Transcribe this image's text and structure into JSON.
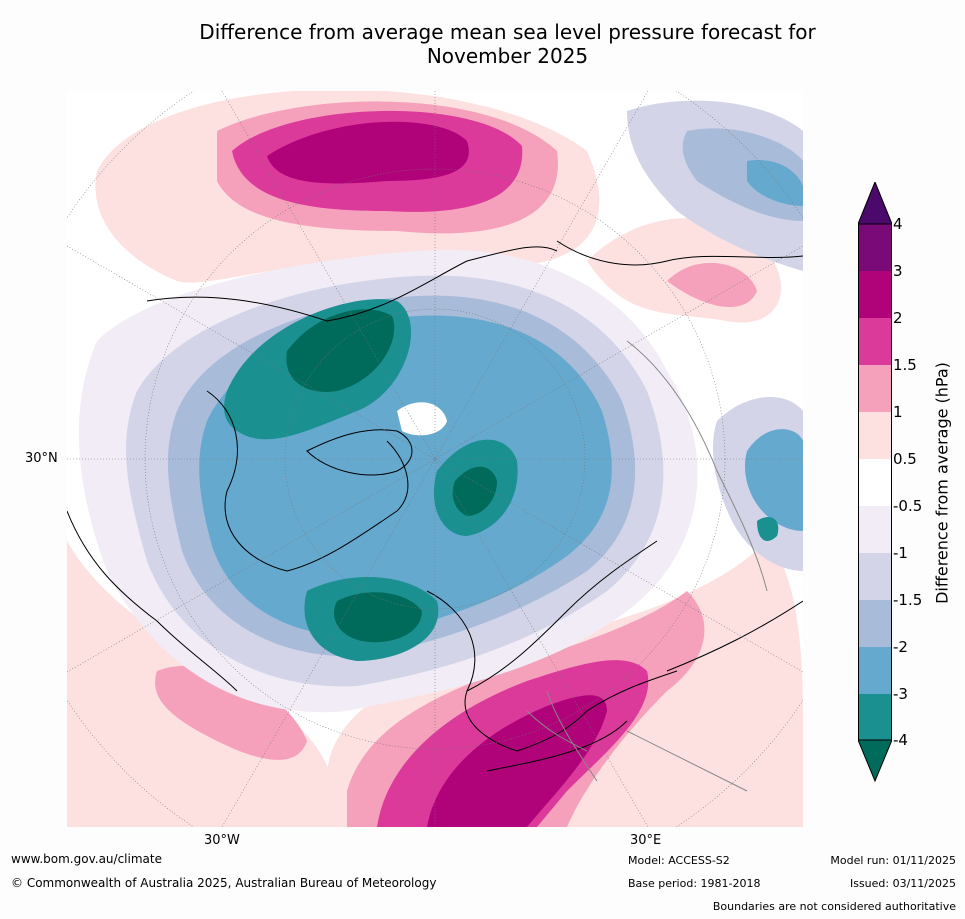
{
  "title": {
    "line1": "Difference from average mean sea level pressure forecast for",
    "line2": "November 2025"
  },
  "map": {
    "projection": "north-polar-stereographic",
    "labels": {
      "lat_30n": "30°N",
      "lon_30w": "30°W",
      "lon_30e": "30°E"
    }
  },
  "colorbar": {
    "label": "Difference from average (hPa)",
    "ticks": [
      "4",
      "3",
      "2",
      "1.5",
      "1",
      "0.5",
      "-0.5",
      "-1",
      "-1.5",
      "-2",
      "-3",
      "-4"
    ],
    "colors": {
      "above_4": "#4b0a6b",
      "3_to_4": "#7a0a78",
      "2_to_3": "#b0037a",
      "1.5_to_2": "#db3a9a",
      "1_to_1.5": "#f6a1bb",
      "0.5_to_1": "#fde1e1",
      "-0.5_to_0.5": "#ffffff",
      "-1_to_-0.5": "#f1ecf5",
      "-1.5_to_-1": "#d3d4e8",
      "-2_to_-1.5": "#a8bbd9",
      "-3_to_-2": "#66a9cf",
      "-4_to_-3": "#1b9090",
      "below_-4": "#006b5a"
    }
  },
  "footer": {
    "url": "www.bom.gov.au/climate",
    "copyright": "© Commonwealth of Australia 2025, Australian Bureau of Meteorology",
    "model": "Model: ACCESS-S2",
    "base_period": "Base period: 1981-2018",
    "model_run": "Model run: 01/11/2025",
    "issued": "Issued: 03/11/2025",
    "disclaimer": "Boundaries are not considered authoritative"
  }
}
